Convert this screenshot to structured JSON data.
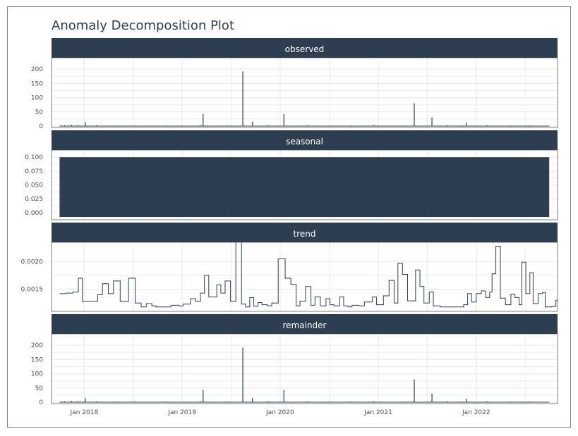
{
  "chart_data": {
    "type": "line",
    "title": "Anomaly Decomposition Plot",
    "xlabel": "",
    "ylabel": "",
    "grid": true,
    "colors": {
      "strip": "#2c3e50",
      "line": "#2c3e50",
      "grid": "#ebebeb",
      "panel_border": "#7f7f7f"
    },
    "x_range": [
      "2017-09-01",
      "2022-10-31"
    ],
    "x_ticks": [
      {
        "date": "2018-01-01",
        "label": "Jan 2018"
      },
      {
        "date": "2019-01-01",
        "label": "Jan 2019"
      },
      {
        "date": "2020-01-01",
        "label": "Jan 2020"
      },
      {
        "date": "2021-01-01",
        "label": "Jan 2021"
      },
      {
        "date": "2022-01-01",
        "label": "Jan 2022"
      }
    ],
    "facets": [
      {
        "name": "observed",
        "kind": "spikes",
        "ylim": [
          -5,
          240
        ],
        "y_ticks": [
          {
            "value": 0,
            "label": "0"
          },
          {
            "value": 50,
            "label": "50"
          },
          {
            "value": 100,
            "label": "100"
          },
          {
            "value": 150,
            "label": "150"
          },
          {
            "value": 200,
            "label": "200"
          }
        ],
        "baseline_range": [
          "2017-10-01",
          "2022-09-30"
        ],
        "spikes": [
          {
            "date": "2017-10-05",
            "value": 2
          },
          {
            "date": "2017-10-20",
            "value": 3
          },
          {
            "date": "2017-11-15",
            "value": 4
          },
          {
            "date": "2017-12-10",
            "value": 3
          },
          {
            "date": "2018-01-05",
            "value": 14
          },
          {
            "date": "2018-02-15",
            "value": 3
          },
          {
            "date": "2018-04-20",
            "value": 2
          },
          {
            "date": "2018-07-10",
            "value": 2
          },
          {
            "date": "2018-11-01",
            "value": 2
          },
          {
            "date": "2019-03-10",
            "value": 3
          },
          {
            "date": "2019-03-20",
            "value": 43
          },
          {
            "date": "2019-06-15",
            "value": 2
          },
          {
            "date": "2019-08-15",
            "value": 192
          },
          {
            "date": "2019-09-20",
            "value": 15
          },
          {
            "date": "2019-11-20",
            "value": 3
          },
          {
            "date": "2020-01-15",
            "value": 43
          },
          {
            "date": "2020-04-10",
            "value": 3
          },
          {
            "date": "2020-09-20",
            "value": 2
          },
          {
            "date": "2020-12-15",
            "value": 3
          },
          {
            "date": "2021-04-10",
            "value": 2
          },
          {
            "date": "2021-05-15",
            "value": 80
          },
          {
            "date": "2021-07-20",
            "value": 30
          },
          {
            "date": "2021-09-15",
            "value": 3
          },
          {
            "date": "2021-11-10",
            "value": 2
          },
          {
            "date": "2021-11-25",
            "value": 12
          },
          {
            "date": "2022-02-10",
            "value": 3
          },
          {
            "date": "2022-05-10",
            "value": 2
          },
          {
            "date": "2022-07-20",
            "value": 2
          }
        ]
      },
      {
        "name": "seasonal",
        "kind": "band",
        "ylim": [
          -0.013,
          0.113
        ],
        "y_ticks": [
          {
            "value": 0,
            "label": "0.000"
          },
          {
            "value": 0.025,
            "label": "0.025"
          },
          {
            "value": 0.05,
            "label": "0.050"
          },
          {
            "value": 0.075,
            "label": "0.075"
          },
          {
            "value": 0.1,
            "label": "0.100"
          }
        ],
        "band": {
          "from": "2017-10-01",
          "to": "2022-09-30",
          "low": -0.008,
          "high": 0.1
        }
      },
      {
        "name": "trend",
        "kind": "step",
        "ylim": [
          0.0011,
          0.00235
        ],
        "y_ticks": [
          {
            "value": 0.0015,
            "label": "0.0015"
          },
          {
            "value": 0.002,
            "label": "0.0020"
          }
        ],
        "steps": [
          [
            "2017-10-01",
            0.00142
          ],
          [
            "2017-10-25",
            0.00143
          ],
          [
            "2017-11-20",
            0.00145
          ],
          [
            "2017-12-10",
            0.0017
          ],
          [
            "2017-12-25",
            0.00128
          ],
          [
            "2018-02-20",
            0.0014
          ],
          [
            "2018-03-10",
            0.0016
          ],
          [
            "2018-04-01",
            0.00142
          ],
          [
            "2018-04-20",
            0.00165
          ],
          [
            "2018-05-15",
            0.00128
          ],
          [
            "2018-06-15",
            0.0017
          ],
          [
            "2018-07-10",
            0.00125
          ],
          [
            "2018-08-01",
            0.00118
          ],
          [
            "2018-08-20",
            0.00124
          ],
          [
            "2018-09-10",
            0.0012
          ],
          [
            "2018-09-25",
            0.00118
          ],
          [
            "2018-11-20",
            0.00121
          ],
          [
            "2018-12-20",
            0.0012
          ],
          [
            "2019-01-05",
            0.00123
          ],
          [
            "2019-02-01",
            0.00133
          ],
          [
            "2019-02-20",
            0.00128
          ],
          [
            "2019-03-10",
            0.00143
          ],
          [
            "2019-03-25",
            0.00175
          ],
          [
            "2019-04-10",
            0.00136
          ],
          [
            "2019-05-10",
            0.00158
          ],
          [
            "2019-05-25",
            0.00143
          ],
          [
            "2019-06-10",
            0.00165
          ],
          [
            "2019-06-30",
            0.00128
          ],
          [
            "2019-07-20",
            0.00235
          ],
          [
            "2019-08-10",
            0.00123
          ],
          [
            "2019-08-25",
            0.00118
          ],
          [
            "2019-09-10",
            0.00135
          ],
          [
            "2019-09-25",
            0.00119
          ],
          [
            "2019-10-10",
            0.00126
          ],
          [
            "2019-10-25",
            0.00122
          ],
          [
            "2019-11-15",
            0.0012
          ],
          [
            "2019-12-01",
            0.00125
          ],
          [
            "2019-12-25",
            0.00205
          ],
          [
            "2020-01-20",
            0.0017
          ],
          [
            "2020-02-10",
            0.00159
          ],
          [
            "2020-03-01",
            0.0012
          ],
          [
            "2020-03-15",
            0.00128
          ],
          [
            "2020-04-05",
            0.00155
          ],
          [
            "2020-04-25",
            0.00121
          ],
          [
            "2020-05-10",
            0.00136
          ],
          [
            "2020-05-30",
            0.0012
          ],
          [
            "2020-06-20",
            0.00133
          ],
          [
            "2020-07-05",
            0.00122
          ],
          [
            "2020-07-20",
            0.0012
          ],
          [
            "2020-08-10",
            0.00136
          ],
          [
            "2020-08-25",
            0.0012
          ],
          [
            "2020-09-10",
            0.00118
          ],
          [
            "2020-09-25",
            0.00121
          ],
          [
            "2020-10-20",
            0.0012
          ],
          [
            "2020-11-10",
            0.00127
          ],
          [
            "2020-12-10",
            0.00136
          ],
          [
            "2020-12-25",
            0.00122
          ],
          [
            "2021-01-20",
            0.00138
          ],
          [
            "2021-02-10",
            0.00166
          ],
          [
            "2021-03-01",
            0.00125
          ],
          [
            "2021-03-15",
            0.00197
          ],
          [
            "2021-04-01",
            0.00177
          ],
          [
            "2021-04-20",
            0.00129
          ],
          [
            "2021-05-20",
            0.00185
          ],
          [
            "2021-06-05",
            0.00155
          ],
          [
            "2021-06-20",
            0.00125
          ],
          [
            "2021-07-10",
            0.00145
          ],
          [
            "2021-07-25",
            0.0012
          ],
          [
            "2021-08-20",
            0.00118
          ],
          [
            "2021-11-15",
            0.00122
          ],
          [
            "2021-11-30",
            0.00142
          ],
          [
            "2021-12-15",
            0.00127
          ],
          [
            "2022-01-01",
            0.00142
          ],
          [
            "2022-01-20",
            0.00147
          ],
          [
            "2022-02-05",
            0.00135
          ],
          [
            "2022-02-20",
            0.00145
          ],
          [
            "2022-03-01",
            0.00178
          ],
          [
            "2022-03-15",
            0.00228
          ],
          [
            "2022-04-01",
            0.00134
          ],
          [
            "2022-04-20",
            0.00122
          ],
          [
            "2022-05-10",
            0.00141
          ],
          [
            "2022-05-25",
            0.00135
          ],
          [
            "2022-06-10",
            0.00122
          ],
          [
            "2022-06-20",
            0.00199
          ],
          [
            "2022-07-05",
            0.00142
          ],
          [
            "2022-07-20",
            0.0018
          ],
          [
            "2022-08-01",
            0.00124
          ],
          [
            "2022-08-20",
            0.00142
          ],
          [
            "2022-09-05",
            0.00144
          ],
          [
            "2022-09-15",
            0.00118
          ],
          [
            "2022-10-10",
            0.00119
          ],
          [
            "2022-10-25",
            0.0013
          ],
          [
            "2022-10-31",
            0.0013
          ]
        ]
      },
      {
        "name": "remainder",
        "kind": "spikes",
        "ylim": [
          -5,
          240
        ],
        "y_ticks": [
          {
            "value": 0,
            "label": "0"
          },
          {
            "value": 50,
            "label": "50"
          },
          {
            "value": 100,
            "label": "100"
          },
          {
            "value": 150,
            "label": "150"
          },
          {
            "value": 200,
            "label": "200"
          }
        ],
        "baseline_range": [
          "2017-10-01",
          "2022-09-30"
        ],
        "spikes": [
          {
            "date": "2017-10-05",
            "value": 2
          },
          {
            "date": "2017-10-20",
            "value": 3
          },
          {
            "date": "2017-11-15",
            "value": 4
          },
          {
            "date": "2017-12-10",
            "value": 3
          },
          {
            "date": "2018-01-05",
            "value": 14
          },
          {
            "date": "2018-02-15",
            "value": 3
          },
          {
            "date": "2018-04-20",
            "value": 2
          },
          {
            "date": "2018-07-10",
            "value": 2
          },
          {
            "date": "2018-11-01",
            "value": 2
          },
          {
            "date": "2019-03-10",
            "value": 3
          },
          {
            "date": "2019-03-20",
            "value": 43
          },
          {
            "date": "2019-06-15",
            "value": 2
          },
          {
            "date": "2019-08-15",
            "value": 192
          },
          {
            "date": "2019-09-20",
            "value": 15
          },
          {
            "date": "2019-11-20",
            "value": 3
          },
          {
            "date": "2020-01-15",
            "value": 43
          },
          {
            "date": "2020-04-10",
            "value": 3
          },
          {
            "date": "2020-09-20",
            "value": 2
          },
          {
            "date": "2020-12-15",
            "value": 3
          },
          {
            "date": "2021-04-10",
            "value": 2
          },
          {
            "date": "2021-05-15",
            "value": 80
          },
          {
            "date": "2021-07-20",
            "value": 30
          },
          {
            "date": "2021-09-15",
            "value": 3
          },
          {
            "date": "2021-11-10",
            "value": 2
          },
          {
            "date": "2021-11-25",
            "value": 12
          },
          {
            "date": "2022-02-10",
            "value": 3
          },
          {
            "date": "2022-05-10",
            "value": 2
          },
          {
            "date": "2022-07-20",
            "value": 2
          }
        ]
      }
    ]
  }
}
